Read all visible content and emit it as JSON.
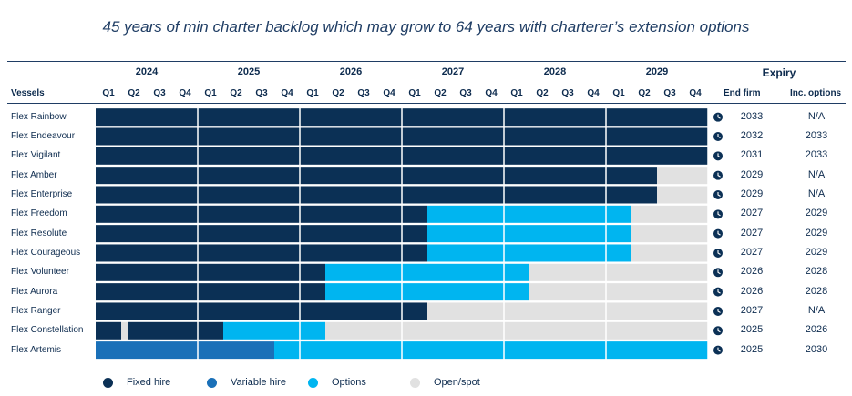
{
  "title": "45 years of min charter backlog which may grow to 64 years with charterer’s extension options",
  "headers": {
    "vessels": "Vessels",
    "expiry": "Expiry",
    "end_firm": "End firm",
    "inc_options": "Inc. options"
  },
  "colors": {
    "fixed": "#0b3055",
    "variable": "#1a70b8",
    "options": "#00b5f0",
    "open": "#e1e1e1"
  },
  "chart_data": {
    "type": "gantt",
    "years": [
      "2024",
      "2025",
      "2026",
      "2027",
      "2028",
      "2029"
    ],
    "quarters": [
      "Q1",
      "Q2",
      "Q3",
      "Q4"
    ],
    "x_range_quarters": [
      0,
      24
    ],
    "vessels": [
      {
        "name": "Flex Rainbow",
        "end_firm": "2033",
        "inc_options": "N/A",
        "segments": [
          {
            "type": "fixed",
            "start": 0,
            "end": 24
          }
        ]
      },
      {
        "name": "Flex Endeavour",
        "end_firm": "2032",
        "inc_options": "2033",
        "segments": [
          {
            "type": "fixed",
            "start": 0,
            "end": 24
          }
        ]
      },
      {
        "name": "Flex Vigilant",
        "end_firm": "2031",
        "inc_options": "2033",
        "segments": [
          {
            "type": "fixed",
            "start": 0,
            "end": 24
          }
        ]
      },
      {
        "name": "Flex Amber",
        "end_firm": "2029",
        "inc_options": "N/A",
        "segments": [
          {
            "type": "fixed",
            "start": 0,
            "end": 22
          },
          {
            "type": "open",
            "start": 22,
            "end": 24
          }
        ]
      },
      {
        "name": "Flex Enterprise",
        "end_firm": "2029",
        "inc_options": "N/A",
        "segments": [
          {
            "type": "fixed",
            "start": 0,
            "end": 22
          },
          {
            "type": "open",
            "start": 22,
            "end": 24
          }
        ]
      },
      {
        "name": "Flex Freedom",
        "end_firm": "2027",
        "inc_options": "2029",
        "segments": [
          {
            "type": "fixed",
            "start": 0,
            "end": 13
          },
          {
            "type": "options",
            "start": 13,
            "end": 21
          },
          {
            "type": "open",
            "start": 21,
            "end": 24
          }
        ]
      },
      {
        "name": "Flex Resolute",
        "end_firm": "2027",
        "inc_options": "2029",
        "segments": [
          {
            "type": "fixed",
            "start": 0,
            "end": 13
          },
          {
            "type": "options",
            "start": 13,
            "end": 21
          },
          {
            "type": "open",
            "start": 21,
            "end": 24
          }
        ]
      },
      {
        "name": "Flex Courageous",
        "end_firm": "2027",
        "inc_options": "2029",
        "segments": [
          {
            "type": "fixed",
            "start": 0,
            "end": 13
          },
          {
            "type": "options",
            "start": 13,
            "end": 21
          },
          {
            "type": "open",
            "start": 21,
            "end": 24
          }
        ]
      },
      {
        "name": "Flex Volunteer",
        "end_firm": "2026",
        "inc_options": "2028",
        "segments": [
          {
            "type": "fixed",
            "start": 0,
            "end": 9
          },
          {
            "type": "options",
            "start": 9,
            "end": 17
          },
          {
            "type": "open",
            "start": 17,
            "end": 24
          }
        ]
      },
      {
        "name": "Flex Aurora",
        "end_firm": "2026",
        "inc_options": "2028",
        "segments": [
          {
            "type": "fixed",
            "start": 0,
            "end": 9
          },
          {
            "type": "options",
            "start": 9,
            "end": 17
          },
          {
            "type": "open",
            "start": 17,
            "end": 24
          }
        ]
      },
      {
        "name": "Flex Ranger",
        "end_firm": "2027",
        "inc_options": "N/A",
        "segments": [
          {
            "type": "fixed",
            "start": 0,
            "end": 13
          },
          {
            "type": "open",
            "start": 13,
            "end": 24
          }
        ]
      },
      {
        "name": "Flex Constellation",
        "end_firm": "2025",
        "inc_options": "2026",
        "segments": [
          {
            "type": "fixed",
            "start": 0,
            "end": 1
          },
          {
            "type": "open",
            "start": 1,
            "end": 1.25
          },
          {
            "type": "fixed",
            "start": 1.25,
            "end": 5
          },
          {
            "type": "options",
            "start": 5,
            "end": 9
          },
          {
            "type": "open",
            "start": 9,
            "end": 24
          }
        ]
      },
      {
        "name": "Flex Artemis",
        "end_firm": "2025",
        "inc_options": "2030",
        "segments": [
          {
            "type": "variable",
            "start": 0,
            "end": 7
          },
          {
            "type": "options",
            "start": 7,
            "end": 24
          }
        ]
      }
    ],
    "legend": [
      {
        "label": "Fixed hire",
        "type": "fixed"
      },
      {
        "label": "Variable hire",
        "type": "variable"
      },
      {
        "label": "Options",
        "type": "options"
      },
      {
        "label": "Open/spot",
        "type": "open"
      }
    ]
  }
}
